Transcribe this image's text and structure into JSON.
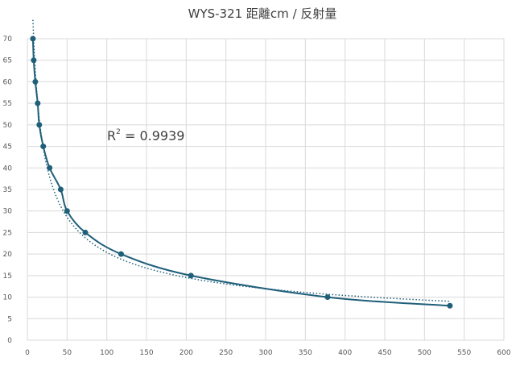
{
  "chart_data": {
    "type": "scatter",
    "title": "WYS-321 距離cm / 反射量",
    "xlabel": "",
    "ylabel": "",
    "xlim": [
      0,
      600
    ],
    "ylim": [
      0,
      70
    ],
    "x_ticks": [
      0,
      50,
      100,
      150,
      200,
      250,
      300,
      350,
      400,
      450,
      500,
      550,
      600
    ],
    "y_ticks": [
      0,
      5,
      10,
      15,
      20,
      25,
      30,
      35,
      40,
      45,
      50,
      55,
      60,
      65,
      70
    ],
    "grid": true,
    "legend": "none",
    "series": [
      {
        "x": [
          7,
          8,
          10,
          13,
          15,
          20,
          28,
          42,
          50,
          73,
          118,
          206,
          378,
          532
        ],
        "y": [
          70,
          65,
          60,
          55,
          50,
          45,
          40,
          35,
          30,
          25,
          20,
          15,
          10,
          8
        ],
        "color": "#1f5f7a"
      }
    ],
    "trendline": {
      "type": "power",
      "style": "dotted",
      "color": "#1f5f7a",
      "label": "R² = 0.9939",
      "r2_text": "0.9939"
    }
  }
}
